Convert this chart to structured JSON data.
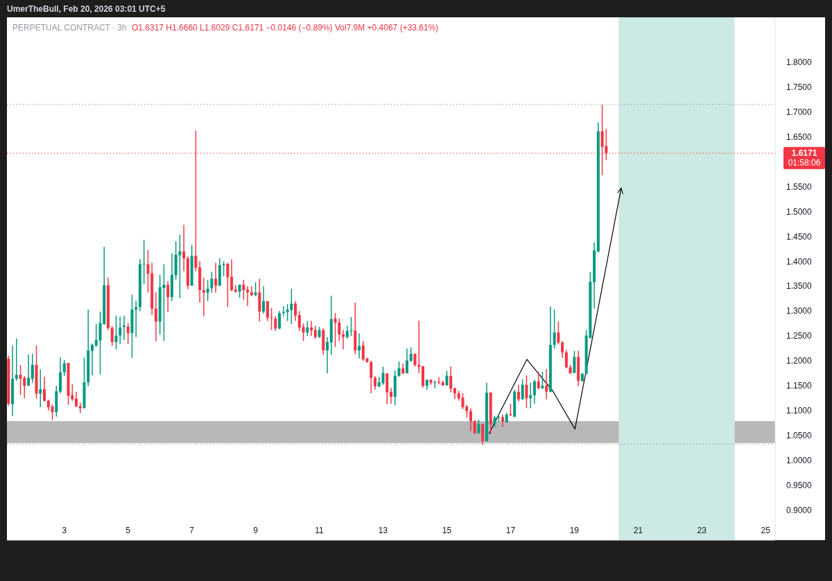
{
  "chart_data": {
    "type": "candlestick",
    "title": "PERPETUAL CONTRACT · 3h",
    "subtitle": "O1.6317 H1.6660 L1.6029 C1.6171 −0.0146 (−0.89%) Vol7.9M +0.4067 (+33.61%)",
    "annotations": [
      "UmerTheBull, Feb 20, 2026 03:01 UTC+5",
      "01:58:06"
    ],
    "x": [
      1.25,
      1.375,
      1.5,
      1.625,
      1.75,
      1.875,
      2,
      2.125,
      2.25,
      2.375,
      2.5,
      2.625,
      2.75,
      2.875,
      3,
      3.125,
      3.25,
      3.375,
      3.5,
      3.625,
      3.75,
      3.875,
      4,
      4.125,
      4.25,
      4.375,
      4.5,
      4.625,
      4.75,
      4.875,
      5,
      5.125,
      5.25,
      5.375,
      5.5,
      5.625,
      5.75,
      5.875,
      6,
      6.125,
      6.25,
      6.375,
      6.5,
      6.625,
      6.75,
      6.875,
      7,
      7.125,
      7.25,
      7.375,
      7.5,
      7.625,
      7.75,
      7.875,
      8,
      8.125,
      8.25,
      8.375,
      8.5,
      8.625,
      8.75,
      8.875,
      9,
      9.125,
      9.25,
      9.375,
      9.5,
      9.625,
      9.75,
      9.875,
      10,
      10.125,
      10.25,
      10.375,
      10.5,
      10.625,
      10.75,
      10.875,
      11,
      11.125,
      11.25,
      11.375,
      11.5,
      11.625,
      11.75,
      11.875,
      12,
      12.125,
      12.25,
      12.375,
      12.5,
      12.625,
      12.75,
      12.875,
      13,
      13.125,
      13.25,
      13.375,
      13.5,
      13.625,
      13.75,
      13.875,
      14,
      14.125,
      14.25,
      14.375,
      14.5,
      14.625,
      14.75,
      14.875,
      15,
      15.125,
      15.25,
      15.375,
      15.5,
      15.625,
      15.75,
      15.875,
      16,
      16.125,
      16.25,
      16.375,
      16.5,
      16.625,
      16.75,
      16.875,
      17,
      17.125,
      17.25,
      17.375,
      17.5,
      17.625,
      17.75,
      17.875,
      18,
      18.125,
      18.25,
      18.375,
      18.5,
      18.625,
      18.75,
      18.875,
      19,
      19.125,
      19.25,
      19.375,
      19.5,
      19.625,
      19.75,
      19.875,
      20
    ],
    "ohlc": [
      [
        1.204,
        1.21,
        1.11,
        1.114
      ],
      [
        1.113,
        1.231,
        1.089,
        1.164
      ],
      [
        1.164,
        1.245,
        1.16,
        1.172
      ],
      [
        1.172,
        1.192,
        1.132,
        1.164
      ],
      [
        1.166,
        1.17,
        1.125,
        1.15
      ],
      [
        1.15,
        1.213,
        1.15,
        1.166
      ],
      [
        1.164,
        1.214,
        1.156,
        1.192
      ],
      [
        1.192,
        1.231,
        1.124,
        1.134
      ],
      [
        1.134,
        1.183,
        1.107,
        1.143
      ],
      [
        1.143,
        1.168,
        1.118,
        1.12
      ],
      [
        1.12,
        1.122,
        1.1,
        1.107
      ],
      [
        1.108,
        1.113,
        1.081,
        1.097
      ],
      [
        1.097,
        1.15,
        1.088,
        1.139
      ],
      [
        1.138,
        1.207,
        1.135,
        1.177
      ],
      [
        1.177,
        1.202,
        1.17,
        1.195
      ],
      [
        1.196,
        1.196,
        1.112,
        1.13
      ],
      [
        1.131,
        1.153,
        1.12,
        1.123
      ],
      [
        1.124,
        1.138,
        1.107,
        1.109
      ],
      [
        1.109,
        1.116,
        1.095,
        1.105
      ],
      [
        1.105,
        1.207,
        1.105,
        1.157
      ],
      [
        1.157,
        1.303,
        1.149,
        1.221
      ],
      [
        1.22,
        1.235,
        1.171,
        1.232
      ],
      [
        1.231,
        1.274,
        1.228,
        1.242
      ],
      [
        1.241,
        1.299,
        1.173,
        1.276
      ],
      [
        1.274,
        1.429,
        1.272,
        1.352
      ],
      [
        1.352,
        1.367,
        1.262,
        1.266
      ],
      [
        1.266,
        1.27,
        1.23,
        1.238
      ],
      [
        1.238,
        1.291,
        1.223,
        1.251
      ],
      [
        1.251,
        1.289,
        1.234,
        1.267
      ],
      [
        1.268,
        1.291,
        1.242,
        1.271
      ],
      [
        1.269,
        1.276,
        1.234,
        1.256
      ],
      [
        1.256,
        1.333,
        1.206,
        1.303
      ],
      [
        1.303,
        1.321,
        1.248,
        1.308
      ],
      [
        1.308,
        1.405,
        1.3,
        1.394
      ],
      [
        1.394,
        1.443,
        1.354,
        1.395
      ],
      [
        1.394,
        1.423,
        1.337,
        1.375
      ],
      [
        1.376,
        1.397,
        1.292,
        1.305
      ],
      [
        1.305,
        1.338,
        1.239,
        1.279
      ],
      [
        1.279,
        1.373,
        1.253,
        1.348
      ],
      [
        1.346,
        1.394,
        1.24,
        1.353
      ],
      [
        1.353,
        1.36,
        1.298,
        1.328
      ],
      [
        1.328,
        1.416,
        1.32,
        1.373
      ],
      [
        1.372,
        1.44,
        1.363,
        1.413
      ],
      [
        1.412,
        1.454,
        1.326,
        1.42
      ],
      [
        1.42,
        1.473,
        1.38,
        1.406
      ],
      [
        1.406,
        1.41,
        1.344,
        1.351
      ],
      [
        1.351,
        1.433,
        1.351,
        1.411
      ],
      [
        1.411,
        1.662,
        1.38,
        1.387
      ],
      [
        1.388,
        1.4,
        1.317,
        1.342
      ],
      [
        1.342,
        1.367,
        1.29,
        1.337
      ],
      [
        1.337,
        1.362,
        1.32,
        1.345
      ],
      [
        1.346,
        1.379,
        1.337,
        1.365
      ],
      [
        1.365,
        1.397,
        1.337,
        1.351
      ],
      [
        1.351,
        1.406,
        1.351,
        1.392
      ],
      [
        1.392,
        1.4,
        1.37,
        1.394
      ],
      [
        1.395,
        1.397,
        1.308,
        1.368
      ],
      [
        1.369,
        1.404,
        1.34,
        1.342
      ],
      [
        1.343,
        1.352,
        1.337,
        1.339
      ],
      [
        1.339,
        1.353,
        1.327,
        1.353
      ],
      [
        1.353,
        1.363,
        1.323,
        1.342
      ],
      [
        1.343,
        1.35,
        1.31,
        1.338
      ],
      [
        1.338,
        1.35,
        1.33,
        1.332
      ],
      [
        1.332,
        1.358,
        1.33,
        1.337
      ],
      [
        1.338,
        1.365,
        1.279,
        1.299
      ],
      [
        1.299,
        1.35,
        1.295,
        1.32
      ],
      [
        1.32,
        1.32,
        1.28,
        1.287
      ],
      [
        1.287,
        1.306,
        1.262,
        1.286
      ],
      [
        1.285,
        1.29,
        1.26,
        1.265
      ],
      [
        1.265,
        1.3,
        1.263,
        1.296
      ],
      [
        1.296,
        1.31,
        1.29,
        1.298
      ],
      [
        1.298,
        1.314,
        1.28,
        1.303
      ],
      [
        1.302,
        1.345,
        1.274,
        1.315
      ],
      [
        1.315,
        1.32,
        1.28,
        1.291
      ],
      [
        1.292,
        1.3,
        1.26,
        1.267
      ],
      [
        1.268,
        1.275,
        1.24,
        1.257
      ],
      [
        1.257,
        1.28,
        1.25,
        1.267
      ],
      [
        1.267,
        1.28,
        1.25,
        1.261
      ],
      [
        1.262,
        1.27,
        1.244,
        1.248
      ],
      [
        1.248,
        1.268,
        1.246,
        1.262
      ],
      [
        1.262,
        1.265,
        1.212,
        1.221
      ],
      [
        1.221,
        1.248,
        1.175,
        1.238
      ],
      [
        1.237,
        1.331,
        1.212,
        1.284
      ],
      [
        1.285,
        1.296,
        1.228,
        1.277
      ],
      [
        1.277,
        1.285,
        1.24,
        1.253
      ],
      [
        1.253,
        1.262,
        1.223,
        1.248
      ],
      [
        1.248,
        1.27,
        1.245,
        1.26
      ],
      [
        1.26,
        1.288,
        1.25,
        1.261
      ],
      [
        1.261,
        1.317,
        1.213,
        1.221
      ],
      [
        1.221,
        1.255,
        1.205,
        1.23
      ],
      [
        1.231,
        1.24,
        1.2,
        1.203
      ],
      [
        1.205,
        1.206,
        1.196,
        1.198
      ],
      [
        1.198,
        1.2,
        1.135,
        1.166
      ],
      [
        1.166,
        1.17,
        1.142,
        1.149
      ],
      [
        1.149,
        1.168,
        1.147,
        1.157
      ],
      [
        1.155,
        1.188,
        1.152,
        1.176
      ],
      [
        1.175,
        1.175,
        1.113,
        1.137
      ],
      [
        1.138,
        1.146,
        1.114,
        1.128
      ],
      [
        1.128,
        1.181,
        1.111,
        1.17
      ],
      [
        1.17,
        1.199,
        1.168,
        1.185
      ],
      [
        1.185,
        1.195,
        1.173,
        1.175
      ],
      [
        1.175,
        1.225,
        1.175,
        1.201
      ],
      [
        1.2,
        1.227,
        1.198,
        1.214
      ],
      [
        1.214,
        1.215,
        1.188,
        1.192
      ],
      [
        1.192,
        1.281,
        1.175,
        1.188
      ],
      [
        1.189,
        1.19,
        1.146,
        1.15
      ],
      [
        1.15,
        1.163,
        1.142,
        1.162
      ],
      [
        1.162,
        1.163,
        1.152,
        1.156
      ],
      [
        1.157,
        1.16,
        1.145,
        1.158
      ],
      [
        1.158,
        1.167,
        1.153,
        1.157
      ],
      [
        1.157,
        1.16,
        1.15,
        1.151
      ],
      [
        1.151,
        1.18,
        1.15,
        1.17
      ],
      [
        1.17,
        1.189,
        1.137,
        1.144
      ],
      [
        1.145,
        1.146,
        1.123,
        1.135
      ],
      [
        1.135,
        1.14,
        1.12,
        1.125
      ],
      [
        1.126,
        1.135,
        1.103,
        1.107
      ],
      [
        1.108,
        1.112,
        1.086,
        1.099
      ],
      [
        1.099,
        1.105,
        1.059,
        1.079
      ],
      [
        1.079,
        1.081,
        1.053,
        1.055
      ],
      [
        1.055,
        1.082,
        1.054,
        1.073
      ],
      [
        1.073,
        1.074,
        1.032,
        1.039
      ],
      [
        1.039,
        1.156,
        1.038,
        1.136
      ],
      [
        1.136,
        1.138,
        1.053,
        1.073
      ],
      [
        1.073,
        1.09,
        1.067,
        1.086
      ],
      [
        1.087,
        1.093,
        1.078,
        1.088
      ],
      [
        1.087,
        1.092,
        1.067,
        1.078
      ],
      [
        1.077,
        1.096,
        1.076,
        1.092
      ],
      [
        1.093,
        1.114,
        1.089,
        1.091
      ],
      [
        1.088,
        1.142,
        1.087,
        1.138
      ],
      [
        1.138,
        1.152,
        1.118,
        1.123
      ],
      [
        1.123,
        1.163,
        1.122,
        1.152
      ],
      [
        1.152,
        1.171,
        1.105,
        1.125
      ],
      [
        1.125,
        1.156,
        1.105,
        1.131
      ],
      [
        1.131,
        1.162,
        1.114,
        1.159
      ],
      [
        1.159,
        1.178,
        1.143,
        1.145
      ],
      [
        1.145,
        1.178,
        1.144,
        1.15
      ],
      [
        1.15,
        1.184,
        1.123,
        1.138
      ],
      [
        1.138,
        1.309,
        1.137,
        1.232
      ],
      [
        1.232,
        1.303,
        1.225,
        1.257
      ],
      [
        1.257,
        1.279,
        1.233,
        1.237
      ],
      [
        1.237,
        1.24,
        1.206,
        1.217
      ],
      [
        1.217,
        1.222,
        1.185,
        1.187
      ],
      [
        1.187,
        1.192,
        1.174,
        1.175
      ],
      [
        1.176,
        1.22,
        1.175,
        1.208
      ],
      [
        1.208,
        1.22,
        1.149,
        1.16
      ],
      [
        1.16,
        1.176,
        1.158,
        1.174
      ],
      [
        1.174,
        1.262,
        1.173,
        1.251
      ],
      [
        1.246,
        1.379,
        1.245,
        1.359
      ],
      [
        1.358,
        1.438,
        1.305,
        1.422
      ],
      [
        1.42,
        1.679,
        1.417,
        1.661
      ],
      [
        1.661,
        1.714,
        1.573,
        1.63
      ],
      [
        1.6317,
        1.666,
        1.6029,
        1.6171
      ]
    ],
    "series": [
      {
        "type": "line",
        "x": [
          16.32,
          17.51,
          18.33,
          19.02,
          20.47
        ],
        "values": [
          1.053,
          1.203,
          1.139,
          1.063,
          1.547
        ],
        "color": "#000000",
        "line_style": "solid",
        "marker": "none"
      }
    ],
    "xlim": [
      1.2,
      25.3
    ],
    "ylim": [
      0.84,
      1.89
    ],
    "xticks": [
      3,
      5,
      7,
      9,
      11,
      13,
      15,
      17,
      19,
      21,
      23,
      25
    ],
    "yticks": [
      {
        "value": 0.9,
        "label": "0.9000"
      },
      {
        "value": 0.95,
        "label": "0.9500"
      },
      {
        "value": 1.0,
        "label": "1.0000"
      },
      {
        "value": 1.05,
        "label": "1.0500"
      },
      {
        "value": 1.1,
        "label": "1.1000"
      },
      {
        "value": 1.15,
        "label": "1.1500"
      },
      {
        "value": 1.2,
        "label": "1.2000"
      },
      {
        "value": 1.25,
        "label": "1.2500"
      },
      {
        "value": 1.3,
        "label": "1.3000"
      },
      {
        "value": 1.35,
        "label": "1.3500"
      },
      {
        "value": 1.4,
        "label": "1.4000"
      },
      {
        "value": 1.45,
        "label": "1.4500"
      },
      {
        "value": 1.5,
        "label": "1.5000"
      },
      {
        "value": 1.55,
        "label": "1.5500"
      },
      {
        "value": 1.65,
        "label": "1.6500"
      },
      {
        "value": 1.7,
        "label": "1.7000"
      },
      {
        "value": 1.75,
        "label": "1.7500"
      },
      {
        "value": 1.8,
        "label": "1.8000"
      }
    ],
    "ref_lines": [
      {
        "axis": "y",
        "value": 1.6171,
        "label": "1.6171",
        "color": "#f23645",
        "line_style": "dotted"
      },
      {
        "axis": "y",
        "value": 1.715,
        "color": "#9598a1",
        "line_style": "dotted"
      },
      {
        "axis": "y",
        "value": 1.033,
        "color": "#9598a1",
        "line_style": "dotted"
      }
    ],
    "bands": [
      {
        "axis": "y",
        "from": 1.035,
        "to": 1.079,
        "color": "#b8b8b8"
      },
      {
        "axis": "x",
        "from": 20.39,
        "to": 24.03,
        "color": "#cce9e4"
      }
    ],
    "grid": false
  }
}
